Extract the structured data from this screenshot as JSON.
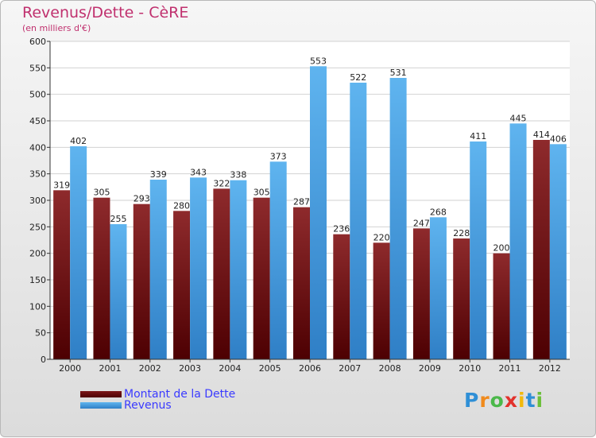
{
  "chart_data": {
    "type": "bar",
    "title": "Revenus/Dette - CèRE",
    "subtitle": "(en milliers d'€)",
    "categories": [
      "2000",
      "2001",
      "2002",
      "2003",
      "2004",
      "2005",
      "2006",
      "2007",
      "2008",
      "2009",
      "2010",
      "2011",
      "2012"
    ],
    "series": [
      {
        "name": "Montant de la Dette",
        "color": "#7a1618",
        "values": [
          319,
          305,
          293,
          280,
          322,
          305,
          287,
          236,
          220,
          247,
          228,
          200,
          414
        ]
      },
      {
        "name": "Revenus",
        "color": "#4ea6e6",
        "values": [
          402,
          255,
          339,
          343,
          338,
          373,
          553,
          522,
          531,
          268,
          411,
          445,
          406
        ]
      }
    ],
    "ylim": [
      0,
      600
    ],
    "yticks": [
      0,
      50,
      100,
      150,
      200,
      250,
      300,
      350,
      400,
      450,
      500,
      550,
      600
    ],
    "grid": true,
    "legend_position": "bottom-left"
  },
  "logo": {
    "letters": [
      "P",
      "r",
      "o",
      "x",
      "i",
      "t",
      "i"
    ],
    "colors": [
      "#2f8fd6",
      "#f08a1c",
      "#4bb84a",
      "#e2322c",
      "#f2b90c",
      "#2f8fd6",
      "#6bbf3a"
    ]
  }
}
